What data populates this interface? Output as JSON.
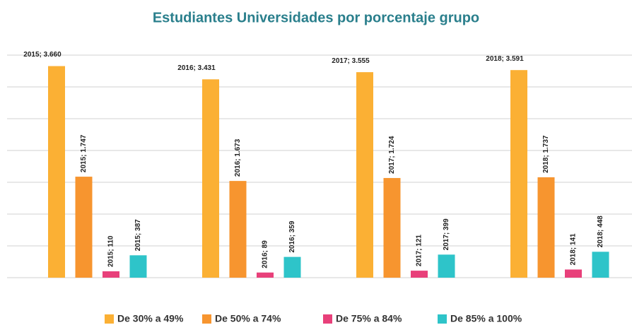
{
  "chart_data": {
    "type": "bar",
    "title": "Estudiantes Universidades por porcentaje grupo",
    "categories": [
      "2015",
      "2016",
      "2017",
      "2018"
    ],
    "series": [
      {
        "name": "De 30% a 49%",
        "color": "#fbb034",
        "values": [
          3660,
          3431,
          3555,
          3591
        ],
        "value_labels": [
          "2015; 3.660",
          "2016; 3.431",
          "2017; 3.555",
          "2018; 3.591"
        ]
      },
      {
        "name": "De 50% a 74%",
        "color": "#f7952f",
        "values": [
          1747,
          1673,
          1724,
          1737
        ],
        "value_labels": [
          "2015; 1.747",
          "2016; 1.673",
          "2017; 1.724",
          "2018; 1.737"
        ]
      },
      {
        "name": "De 75% a 84%",
        "color": "#e8407a",
        "values": [
          110,
          89,
          121,
          141
        ],
        "value_labels": [
          "2015; 110",
          "2016; 89",
          "2017; 121",
          "2018; 141"
        ]
      },
      {
        "name": "De 85% a 100%",
        "color": "#2ec4c9",
        "values": [
          387,
          359,
          399,
          448
        ],
        "value_labels": [
          "2015; 387",
          "2016; 359",
          "2017; 399",
          "2018; 448"
        ]
      }
    ],
    "ylim": [
      0,
      3850
    ],
    "yticks": [
      0,
      550,
      1100,
      1650,
      2200,
      2750,
      3300,
      3850
    ],
    "grid": true
  }
}
